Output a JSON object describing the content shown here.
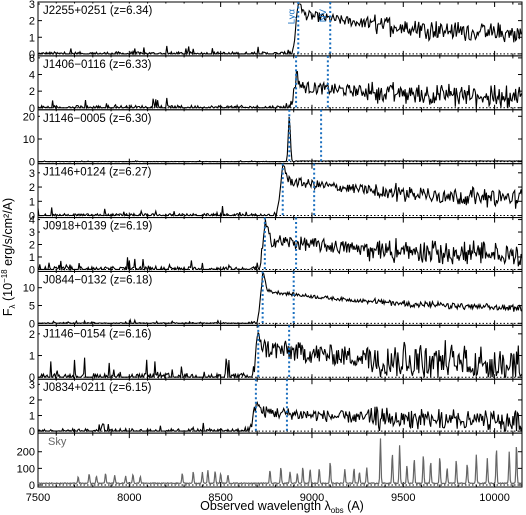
{
  "figure": {
    "xlabel": "Observed wavelength λ",
    "xlabel_sub": "obs",
    "xlabel_unit": "(A)",
    "ylabel_prefix": "F",
    "ylabel_sub": "λ",
    "ylabel_mid": "(10",
    "ylabel_exp": "−18",
    "ylabel_suffix": "erg/s/cm²/A)",
    "line_labels": {
      "lya": "Lyα",
      "nv": "NV"
    },
    "colors": {
      "spectrum": "#000000",
      "sky": "#666666",
      "marker": "#1a6fbf",
      "zero_line": "#000000"
    }
  },
  "chart_data": [
    {
      "type": "line",
      "title": "J2255+0251 (z=6.34)",
      "redshift": 6.34,
      "ylim": [
        0,
        3
      ],
      "yticks": [
        0,
        1,
        2,
        3
      ],
      "peak": 3.0,
      "noise": 0.55,
      "dip": true,
      "lines": {
        "lya": 8925,
        "nv": 9100
      },
      "show_line_labels": true
    },
    {
      "type": "line",
      "title": "J1406−0116 (z=6.33)",
      "redshift": 6.33,
      "ylim": [
        0,
        6
      ],
      "yticks": [
        0,
        2,
        4,
        6
      ],
      "peak": 3.2,
      "noise": 1.3,
      "dip": true,
      "lines": {
        "lya": 8913,
        "nv": 9087
      }
    },
    {
      "type": "line",
      "title": "J1146−0005 (z=6.30)",
      "redshift": 6.3,
      "ylim": [
        0,
        22
      ],
      "yticks": [
        0,
        10,
        20
      ],
      "peak": 20.0,
      "noise": 0.5,
      "narrow": true,
      "lines": {
        "lya": 8876,
        "nv": 9050
      }
    },
    {
      "type": "line",
      "title": "J1146+0124 (z=6.27)",
      "redshift": 6.27,
      "ylim": [
        0,
        3.5
      ],
      "yticks": [
        0,
        1,
        2,
        3
      ],
      "peak": 3.1,
      "noise": 0.6,
      "lines": {
        "lya": 8840,
        "nv": 9012
      }
    },
    {
      "type": "line",
      "title": "J0918+0139 (z=6.19)",
      "redshift": 6.19,
      "ylim": [
        0,
        4
      ],
      "yticks": [
        0,
        1,
        2,
        3,
        4
      ],
      "peak": 3.0,
      "noise": 1.0,
      "lines": {
        "lya": 8742,
        "nv": 8913
      }
    },
    {
      "type": "line",
      "title": "J0844−0132 (z=6.18)",
      "redshift": 6.18,
      "ylim": [
        0,
        14
      ],
      "yticks": [
        0,
        5,
        10
      ],
      "peak": 11.5,
      "noise": 0.9,
      "lines": {
        "lya": 8730,
        "nv": 8900
      }
    },
    {
      "type": "line",
      "title": "J1146−0154 (z=6.16)",
      "redshift": 6.16,
      "ylim": [
        0,
        2.3
      ],
      "yticks": [
        0,
        1,
        2
      ],
      "peak": 1.7,
      "noise": 0.85,
      "lines": {
        "lya": 8706,
        "nv": 8875
      }
    },
    {
      "type": "line",
      "title": "J0834+0211 (z=6.15)",
      "redshift": 6.15,
      "ylim": [
        0,
        3.2
      ],
      "yticks": [
        0,
        1,
        2,
        3
      ],
      "peak": 1.6,
      "noise": 0.7,
      "lines": {
        "lya": 8693,
        "nv": 8863
      }
    },
    {
      "type": "line",
      "title": "Sky",
      "ylim": [
        0,
        300
      ],
      "yticks": [
        0,
        100,
        200
      ],
      "is_sky": true
    }
  ],
  "x_axis": {
    "xlim": [
      7500,
      10150
    ],
    "xticks": [
      7500,
      8000,
      8500,
      9000,
      9500,
      10000
    ]
  }
}
